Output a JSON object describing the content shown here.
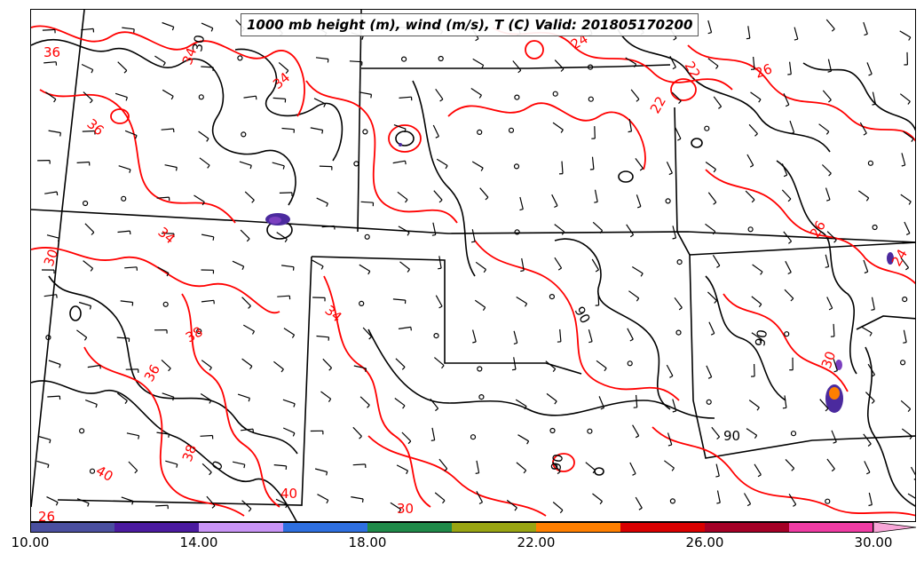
{
  "map": {
    "title": "1000 mb height (m), wind (m/s), T (C) Valid: 201805170200",
    "temperature_labels": [
      "36",
      "34",
      "30",
      "34",
      "36",
      "34",
      "30",
      "38",
      "36",
      "38",
      "40",
      "40",
      "26",
      "24",
      "22",
      "22",
      "26",
      "24",
      "30",
      "34",
      "26"
    ],
    "height_labels": [
      "30",
      "0",
      "90",
      "90",
      "90",
      "90"
    ],
    "colors": {
      "state_borders": "#000000",
      "height_contours": "#000000",
      "temperature_contours": "#ff0000",
      "wind_barbs": "#000000",
      "shade_purple": "#4b2a9e",
      "shade_violet": "#7b3fbf",
      "shade_orange": "#ff7f00"
    }
  },
  "colorbar": {
    "tick_labels": [
      "10.00",
      "14.00",
      "18.00",
      "22.00",
      "26.00",
      "30.00"
    ],
    "segments": [
      "#4a4fa0",
      "#4b1aa0",
      "#c994f6",
      "#2e6fe0",
      "#1f8a49",
      "#99a512",
      "#ff7f00",
      "#d90000",
      "#a50026",
      "#f03ca4"
    ],
    "extend_color": "#f8a6d8"
  }
}
